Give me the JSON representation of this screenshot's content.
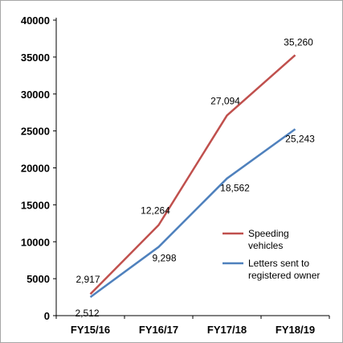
{
  "chart_data": {
    "type": "line",
    "categories": [
      "FY15/16",
      "FY16/17",
      "FY17/18",
      "FY18/19"
    ],
    "ylim": [
      0,
      40000
    ],
    "yticks": [
      0,
      5000,
      10000,
      15000,
      20000,
      25000,
      30000,
      35000,
      40000
    ],
    "ytick_labels": [
      "0",
      "5000",
      "10000",
      "15000",
      "20000",
      "25000",
      "30000",
      "35000",
      "40000"
    ],
    "grid": false,
    "legend_position": "right",
    "series": [
      {
        "name": "Speeding vehicles",
        "legend_lines": [
          "Speeding",
          "vehicles"
        ],
        "color": "#c0504d",
        "values": [
          2917,
          12264,
          27094,
          35260
        ],
        "labels": [
          "2,917",
          "12,264",
          "27,094",
          "35,260"
        ]
      },
      {
        "name": "Letters sent to registered owner",
        "legend_lines": [
          "Letters sent to",
          "registered owner"
        ],
        "color": "#4f81bd",
        "values": [
          2512,
          9298,
          18562,
          25243
        ],
        "labels": [
          "2,512",
          "9,298",
          "18,562",
          "25,243"
        ]
      }
    ]
  }
}
